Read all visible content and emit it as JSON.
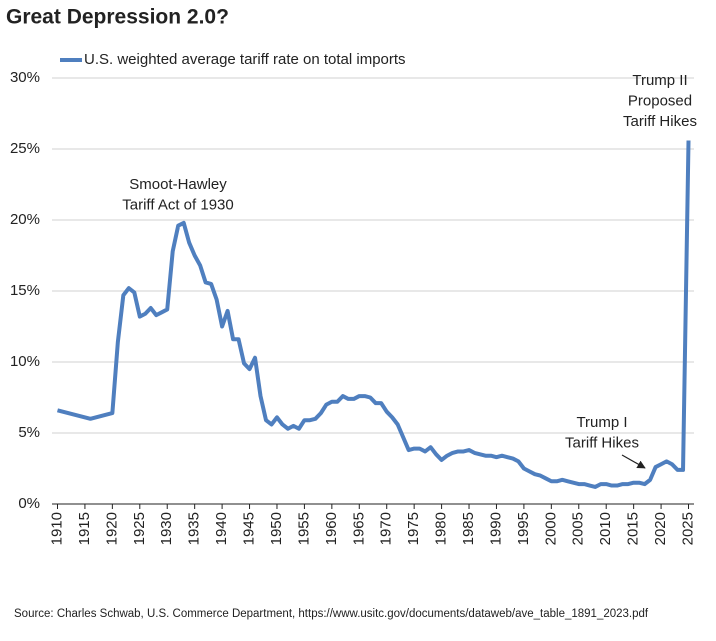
{
  "chart_data": {
    "type": "line",
    "title": "Great Depression 2.0?",
    "source": "Source: Charles Schwab, U.S. Commerce Department, https://www.usitc.gov/documents/dataweb/ave_table_1891_2023.pdf",
    "x": [
      1910,
      1916,
      1920,
      1921,
      1922,
      1923,
      1924,
      1925,
      1926,
      1927,
      1928,
      1929,
      1930,
      1931,
      1932,
      1933,
      1934,
      1935,
      1936,
      1937,
      1938,
      1939,
      1940,
      1941,
      1942,
      1943,
      1944,
      1945,
      1946,
      1947,
      1948,
      1949,
      1950,
      1951,
      1952,
      1953,
      1954,
      1955,
      1956,
      1957,
      1958,
      1959,
      1960,
      1961,
      1962,
      1963,
      1964,
      1965,
      1966,
      1967,
      1968,
      1969,
      1970,
      1971,
      1972,
      1973,
      1974,
      1975,
      1976,
      1977,
      1978,
      1979,
      1980,
      1981,
      1982,
      1983,
      1984,
      1985,
      1986,
      1987,
      1988,
      1989,
      1990,
      1991,
      1992,
      1993,
      1994,
      1995,
      1996,
      1997,
      1998,
      1999,
      2000,
      2001,
      2002,
      2003,
      2004,
      2005,
      2006,
      2007,
      2008,
      2009,
      2010,
      2011,
      2012,
      2013,
      2014,
      2015,
      2016,
      2017,
      2018,
      2019,
      2020,
      2021,
      2022,
      2023,
      2024,
      2025
    ],
    "series": [
      {
        "name": "U.S. weighted average tariff rate on total imports",
        "color": "#4f7fbf",
        "values": [
          6.6,
          6.0,
          6.4,
          11.4,
          14.7,
          15.2,
          14.9,
          13.2,
          13.4,
          13.8,
          13.3,
          13.5,
          13.7,
          17.8,
          19.6,
          19.8,
          18.4,
          17.5,
          16.8,
          15.6,
          15.5,
          14.4,
          12.5,
          13.6,
          11.6,
          11.6,
          9.9,
          9.5,
          10.3,
          7.6,
          5.9,
          5.6,
          6.1,
          5.6,
          5.3,
          5.5,
          5.3,
          5.9,
          5.9,
          6.0,
          6.4,
          7.0,
          7.2,
          7.2,
          7.6,
          7.4,
          7.4,
          7.6,
          7.6,
          7.5,
          7.1,
          7.1,
          6.5,
          6.1,
          5.6,
          4.7,
          3.8,
          3.9,
          3.9,
          3.7,
          4.0,
          3.5,
          3.1,
          3.4,
          3.6,
          3.7,
          3.7,
          3.8,
          3.6,
          3.5,
          3.4,
          3.4,
          3.3,
          3.4,
          3.3,
          3.2,
          3.0,
          2.5,
          2.3,
          2.1,
          2.0,
          1.8,
          1.6,
          1.6,
          1.7,
          1.6,
          1.5,
          1.4,
          1.4,
          1.3,
          1.2,
          1.4,
          1.4,
          1.3,
          1.3,
          1.4,
          1.4,
          1.5,
          1.5,
          1.4,
          1.7,
          2.6,
          2.8,
          3.0,
          2.8,
          2.4,
          2.4,
          25.6
        ]
      }
    ],
    "xlim": [
      1909,
      2026
    ],
    "xticks": [
      1910,
      1915,
      1920,
      1925,
      1930,
      1935,
      1940,
      1945,
      1950,
      1955,
      1960,
      1965,
      1970,
      1975,
      1980,
      1985,
      1990,
      1995,
      2000,
      2005,
      2010,
      2015,
      2020,
      2025
    ],
    "ylim": [
      0,
      30
    ],
    "yticks": [
      {
        "value": 0,
        "label": "0%"
      },
      {
        "value": 5,
        "label": "5%"
      },
      {
        "value": 10,
        "label": "10%"
      },
      {
        "value": 15,
        "label": "15%"
      },
      {
        "value": 20,
        "label": "20%"
      },
      {
        "value": 25,
        "label": "25%"
      },
      {
        "value": 30,
        "label": "30%"
      }
    ],
    "grid": true,
    "legend": "top-left",
    "annotations": [
      {
        "lines": [
          "Smoot-Hawley",
          "Tariff Act of 1930"
        ]
      },
      {
        "lines": [
          "Trump I",
          "Tariff Hikes"
        ]
      },
      {
        "lines": [
          "Trump II",
          "Proposed",
          "Tariff Hikes"
        ]
      }
    ]
  }
}
